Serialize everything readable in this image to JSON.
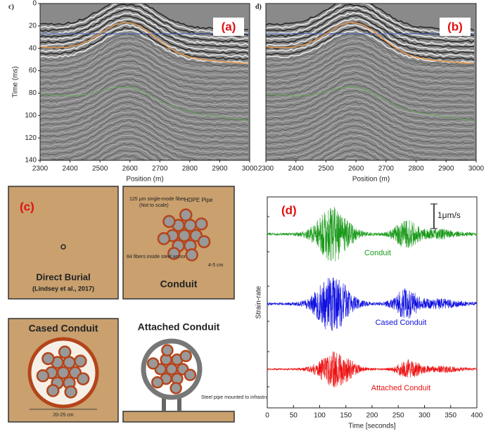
{
  "panel_a": {
    "corner": "c)",
    "label": "(a)",
    "ylabel": "Time (ms)",
    "xlabel": "Position (m)",
    "xlim": [
      2300,
      3000
    ],
    "xticks": [
      2300,
      2400,
      2500,
      2600,
      2700,
      2800,
      2900,
      3000
    ],
    "ylim": [
      0,
      140
    ],
    "yticks": [
      0,
      20,
      40,
      60,
      80,
      100,
      120,
      140
    ]
  },
  "panel_b": {
    "corner": "d)",
    "label": "(b)",
    "xlabel": "Position (m)",
    "xlim": [
      2300,
      3000
    ],
    "xticks": [
      2300,
      2400,
      2500,
      2600,
      2700,
      2800,
      2900,
      3000
    ]
  },
  "panel_c": {
    "label": "(c)",
    "direct_burial": {
      "title": "Direct Burial",
      "citation": "(Lindsey et al., 2017)"
    },
    "conduit": {
      "title": "Conduit",
      "fiber_note": "125 μm single-mode fiber",
      "scale_note": "(Not to scale)",
      "pipe": "HDPE Pipe",
      "armor_note": "84 fibers inside steel armor",
      "size": "4-5 cm"
    },
    "cased_conduit": {
      "title": "Cased Conduit",
      "size": "20-25 cm"
    },
    "attached_conduit": {
      "title": "Attached Conduit",
      "pipe_note": "Steel pipe mounted to infrastructure"
    }
  },
  "panel_d": {
    "label": "(d)",
    "scale_bar": "1μm/s",
    "ylabel": "Strain-rate",
    "xlabel": "Time [seconds]",
    "xlim": [
      0,
      400
    ],
    "xticks": [
      0,
      50,
      100,
      150,
      200,
      250,
      300,
      350,
      400
    ],
    "traces": [
      {
        "name": "Conduit",
        "color": "#1a9a1a"
      },
      {
        "name": "Cased Conduit",
        "color": "#1010e0"
      },
      {
        "name": "Attached Conduit",
        "color": "#ee1010"
      }
    ]
  }
}
